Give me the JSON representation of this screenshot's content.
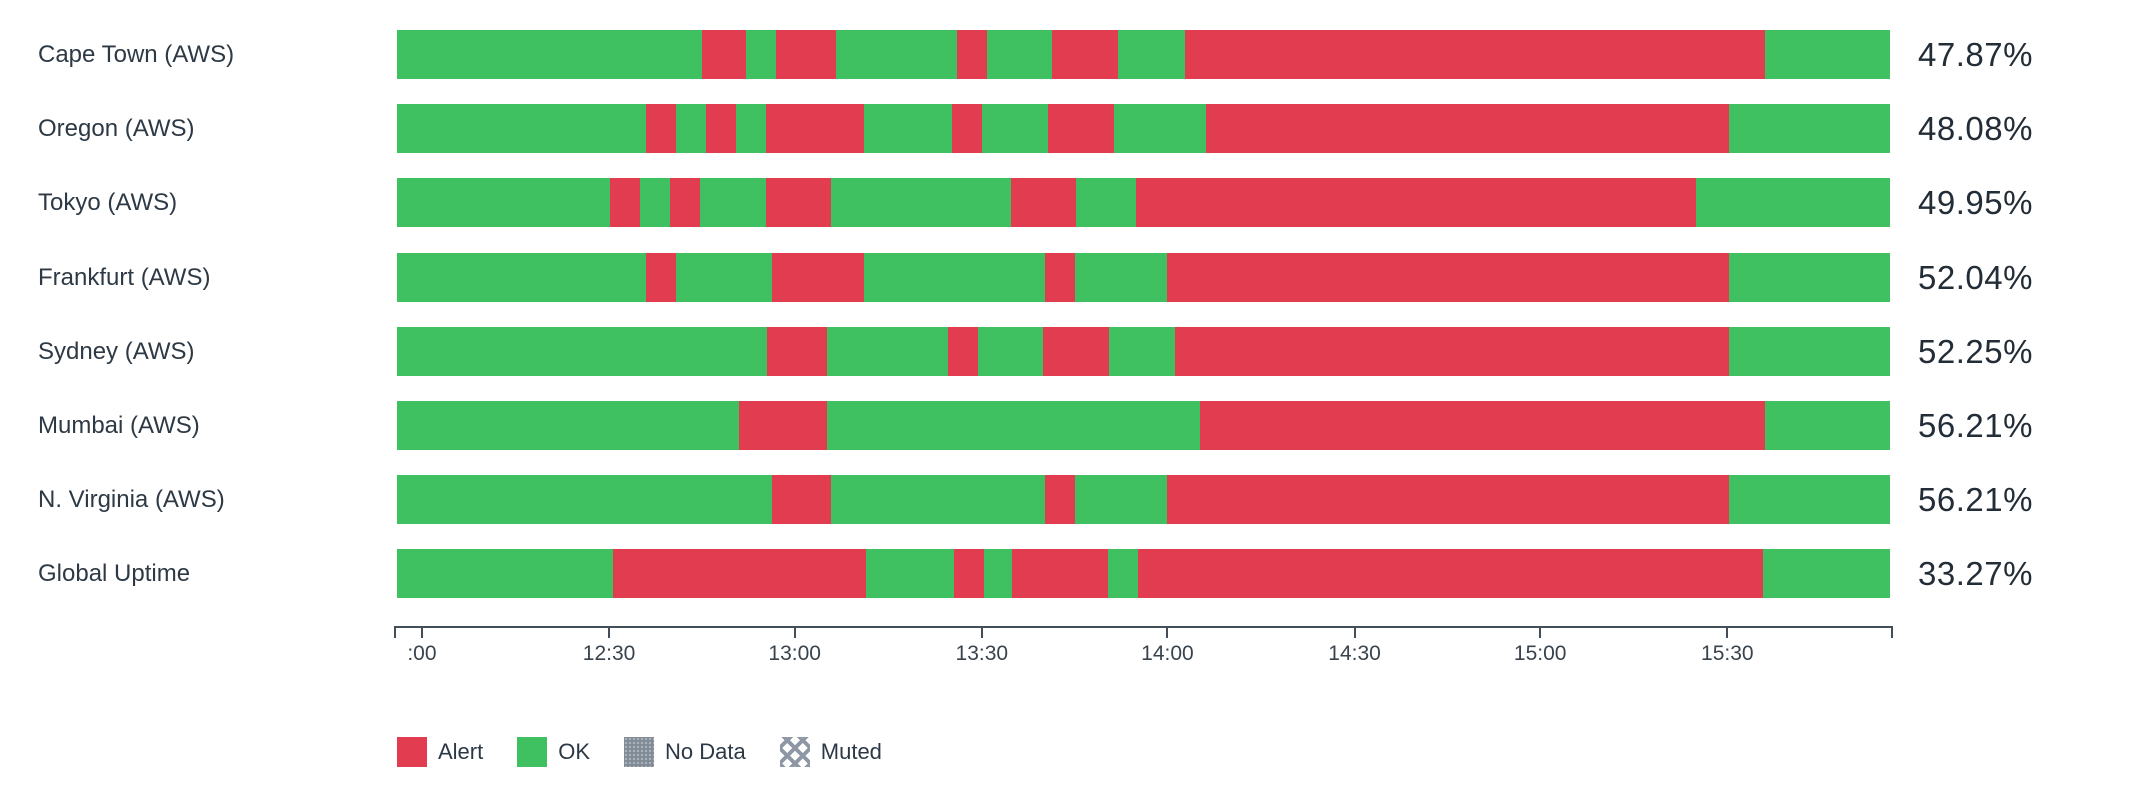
{
  "chart_data": {
    "type": "bar",
    "subtype": "status-timeline (uptime check status by region over time)",
    "title": "",
    "xlabel": "",
    "ylabel": "",
    "legend_position": "bottom",
    "grid": false,
    "colors": {
      "ok": "#3fc162",
      "alert": "#e23c50",
      "no_data": "#808b96",
      "muted": "#8e98a4",
      "text": "#2d3944"
    },
    "time_axis": {
      "ticks": [
        {
          "label": "",
          "pos_pct": 0
        },
        {
          "label": ":00",
          "pos_pct": 1.8
        },
        {
          "label": "12:30",
          "pos_pct": 14.3
        },
        {
          "label": "13:00",
          "pos_pct": 26.7
        },
        {
          "label": "13:30",
          "pos_pct": 39.2
        },
        {
          "label": "14:00",
          "pos_pct": 51.6
        },
        {
          "label": "14:30",
          "pos_pct": 64.1
        },
        {
          "label": "15:00",
          "pos_pct": 76.5
        },
        {
          "label": "15:30",
          "pos_pct": 89.0
        },
        {
          "label": "",
          "pos_pct": 100
        }
      ]
    },
    "rows": [
      {
        "label": "Cape Town (AWS)",
        "uptime": "47.87%",
        "segments": [
          {
            "status": "ok",
            "width_pct": 20.4
          },
          {
            "status": "alert",
            "width_pct": 3.0
          },
          {
            "status": "ok",
            "width_pct": 2.0
          },
          {
            "status": "alert",
            "width_pct": 4.0
          },
          {
            "status": "ok",
            "width_pct": 8.1
          },
          {
            "status": "alert",
            "width_pct": 2.0
          },
          {
            "status": "ok",
            "width_pct": 4.4
          },
          {
            "status": "alert",
            "width_pct": 4.4
          },
          {
            "status": "ok",
            "width_pct": 4.5
          },
          {
            "status": "alert",
            "width_pct": 38.8
          },
          {
            "status": "ok",
            "width_pct": 8.4
          }
        ]
      },
      {
        "label": "Oregon (AWS)",
        "uptime": "48.08%",
        "segments": [
          {
            "status": "ok",
            "width_pct": 16.7
          },
          {
            "status": "alert",
            "width_pct": 2.0
          },
          {
            "status": "ok",
            "width_pct": 2.0
          },
          {
            "status": "alert",
            "width_pct": 2.0
          },
          {
            "status": "ok",
            "width_pct": 2.0
          },
          {
            "status": "alert",
            "width_pct": 6.6
          },
          {
            "status": "ok",
            "width_pct": 5.9
          },
          {
            "status": "alert",
            "width_pct": 2.0
          },
          {
            "status": "ok",
            "width_pct": 4.4
          },
          {
            "status": "alert",
            "width_pct": 4.4
          },
          {
            "status": "ok",
            "width_pct": 6.2
          },
          {
            "status": "alert",
            "width_pct": 35.0
          },
          {
            "status": "ok",
            "width_pct": 10.8
          }
        ]
      },
      {
        "label": "Tokyo (AWS)",
        "uptime": "49.95%",
        "segments": [
          {
            "status": "ok",
            "width_pct": 14.3
          },
          {
            "status": "alert",
            "width_pct": 2.0
          },
          {
            "status": "ok",
            "width_pct": 2.0
          },
          {
            "status": "alert",
            "width_pct": 2.0
          },
          {
            "status": "ok",
            "width_pct": 4.4
          },
          {
            "status": "alert",
            "width_pct": 4.4
          },
          {
            "status": "ok",
            "width_pct": 12.0
          },
          {
            "status": "alert",
            "width_pct": 4.4
          },
          {
            "status": "ok",
            "width_pct": 4.0
          },
          {
            "status": "alert",
            "width_pct": 37.5
          },
          {
            "status": "ok",
            "width_pct": 13.0
          }
        ]
      },
      {
        "label": "Frankfurt (AWS)",
        "uptime": "52.04%",
        "segments": [
          {
            "status": "ok",
            "width_pct": 16.7
          },
          {
            "status": "alert",
            "width_pct": 2.0
          },
          {
            "status": "ok",
            "width_pct": 6.4
          },
          {
            "status": "alert",
            "width_pct": 6.2
          },
          {
            "status": "ok",
            "width_pct": 12.1
          },
          {
            "status": "alert",
            "width_pct": 2.0
          },
          {
            "status": "ok",
            "width_pct": 6.2
          },
          {
            "status": "alert",
            "width_pct": 37.6
          },
          {
            "status": "ok",
            "width_pct": 10.8
          }
        ]
      },
      {
        "label": "Sydney (AWS)",
        "uptime": "52.25%",
        "segments": [
          {
            "status": "ok",
            "width_pct": 24.8
          },
          {
            "status": "alert",
            "width_pct": 4.0
          },
          {
            "status": "ok",
            "width_pct": 8.1
          },
          {
            "status": "alert",
            "width_pct": 2.0
          },
          {
            "status": "ok",
            "width_pct": 4.4
          },
          {
            "status": "alert",
            "width_pct": 4.4
          },
          {
            "status": "ok",
            "width_pct": 4.4
          },
          {
            "status": "alert",
            "width_pct": 37.1
          },
          {
            "status": "ok",
            "width_pct": 10.8
          }
        ]
      },
      {
        "label": "Mumbai (AWS)",
        "uptime": "56.21%",
        "segments": [
          {
            "status": "ok",
            "width_pct": 22.9
          },
          {
            "status": "alert",
            "width_pct": 5.9
          },
          {
            "status": "ok",
            "width_pct": 25.0
          },
          {
            "status": "alert",
            "width_pct": 37.8
          },
          {
            "status": "ok",
            "width_pct": 8.4
          }
        ]
      },
      {
        "label": "N. Virginia (AWS)",
        "uptime": "56.21%",
        "segments": [
          {
            "status": "ok",
            "width_pct": 25.1
          },
          {
            "status": "alert",
            "width_pct": 4.0
          },
          {
            "status": "ok",
            "width_pct": 14.3
          },
          {
            "status": "alert",
            "width_pct": 2.0
          },
          {
            "status": "ok",
            "width_pct": 6.2
          },
          {
            "status": "alert",
            "width_pct": 37.6
          },
          {
            "status": "ok",
            "width_pct": 10.8
          }
        ]
      },
      {
        "label": "Global Uptime",
        "uptime": "33.27%",
        "segments": [
          {
            "status": "ok",
            "width_pct": 14.5
          },
          {
            "status": "alert",
            "width_pct": 16.9
          },
          {
            "status": "ok",
            "width_pct": 5.9
          },
          {
            "status": "alert",
            "width_pct": 2.0
          },
          {
            "status": "ok",
            "width_pct": 1.9
          },
          {
            "status": "alert",
            "width_pct": 6.4
          },
          {
            "status": "ok",
            "width_pct": 2.0
          },
          {
            "status": "alert",
            "width_pct": 41.9
          },
          {
            "status": "ok",
            "width_pct": 8.5
          }
        ]
      }
    ],
    "legend": [
      {
        "label": "Alert",
        "swatch": "solid-alert"
      },
      {
        "label": "OK",
        "swatch": "solid-ok"
      },
      {
        "label": "No Data",
        "swatch": "dotted"
      },
      {
        "label": "Muted",
        "swatch": "crosshatch"
      }
    ]
  }
}
